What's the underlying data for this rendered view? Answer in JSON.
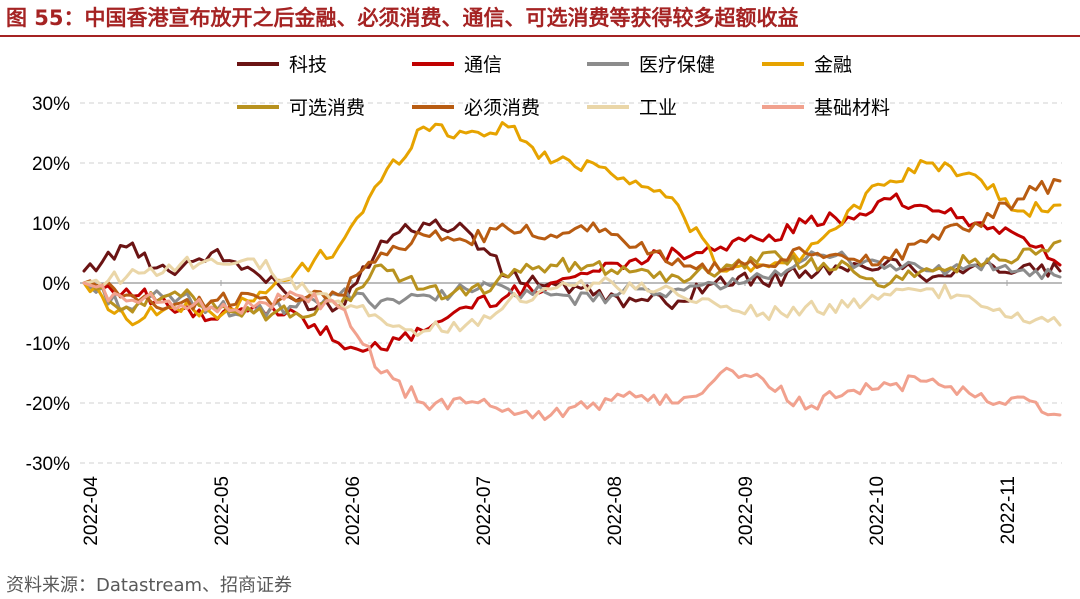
{
  "figure": {
    "title": "图 55：中国香港宣布放开之后金融、必须消费、通信、可选消费等获得较多超额收益",
    "source": "资料来源：Datastream、招商证券",
    "title_color": "#a52323"
  },
  "chart_data": {
    "type": "line",
    "title": "中国香港宣布放开之后金融、必须消费、通信、可选消费等获得较多超额收益",
    "xlabel": "",
    "ylabel": "",
    "ylim": [
      -30,
      30
    ],
    "yticks": [
      -30,
      -20,
      -10,
      0,
      10,
      20,
      30
    ],
    "ytick_labels": [
      "-30%",
      "-20%",
      "-10%",
      "0%",
      "10%",
      "20%",
      "30%"
    ],
    "x_tick_labels": [
      "2022-04",
      "2022-05",
      "2022-06",
      "2022-07",
      "2022-08",
      "2022-09",
      "2022-10",
      "2022-11"
    ],
    "grid": "horizontal dashed",
    "legend_position": "top",
    "x": [
      "04-01",
      "04-11",
      "04-21",
      "05-01",
      "05-11",
      "05-21",
      "06-01",
      "06-11",
      "06-21",
      "07-01",
      "07-11",
      "07-21",
      "08-01",
      "08-11",
      "08-21",
      "09-01",
      "09-11",
      "09-21",
      "10-01",
      "10-11",
      "10-21",
      "11-01",
      "11-11",
      "11-16"
    ],
    "series": [
      {
        "name": "科技",
        "color": "#6b1414",
        "values": [
          2,
          6,
          2,
          5,
          2,
          -3,
          -4,
          7,
          10,
          9,
          1,
          0,
          -2,
          -3,
          -3,
          1,
          0,
          2,
          2,
          4,
          1,
          3,
          2,
          2
        ]
      },
      {
        "name": "通信",
        "color": "#c00000",
        "values": [
          0,
          -1,
          -4,
          -6,
          -4,
          -5,
          -10,
          -11,
          -8,
          -4,
          -2,
          0,
          2,
          4,
          5,
          6,
          7,
          10,
          11,
          14,
          12,
          10,
          8,
          3
        ]
      },
      {
        "name": "医疗保健",
        "color": "#8c8c8c",
        "values": [
          0,
          -4,
          -2,
          -4,
          -5,
          -4,
          -2,
          -3,
          -2,
          -1,
          -1,
          -2,
          -3,
          -1,
          -1,
          -1,
          1,
          4,
          4,
          3,
          2,
          3,
          2,
          1
        ]
      },
      {
        "name": "金融",
        "color": "#e6a300",
        "values": [
          0,
          -6,
          -4,
          -5,
          -3,
          2,
          6,
          17,
          26,
          25,
          26,
          20,
          20,
          17,
          13,
          2,
          3,
          5,
          12,
          17,
          20,
          18,
          12,
          13
        ]
      },
      {
        "name": "可选消费",
        "color": "#b8921f",
        "values": [
          0,
          -4,
          -2,
          -3,
          -5,
          -5,
          -4,
          3,
          -1,
          -2,
          1,
          3,
          3,
          2,
          1,
          2,
          5,
          3,
          3,
          0,
          2,
          4,
          4,
          7
        ]
      },
      {
        "name": "必须消费",
        "color": "#b85c12",
        "values": [
          0,
          -2,
          -4,
          -3,
          -2,
          -3,
          -2,
          5,
          8,
          7,
          9,
          8,
          10,
          6,
          4,
          2,
          3,
          5,
          4,
          4,
          8,
          10,
          14,
          17
        ]
      },
      {
        "name": "工业",
        "color": "#ead6a8",
        "values": [
          0,
          1,
          3,
          4,
          4,
          -1,
          -3,
          -6,
          -8,
          -7,
          -3,
          -1,
          0,
          -1,
          -2,
          -4,
          -5,
          -4,
          -4,
          -2,
          -1,
          -3,
          -5,
          -7
        ]
      },
      {
        "name": "基础材料",
        "color": "#f1a18e",
        "values": [
          0,
          -3,
          -3,
          -4,
          -4,
          -2,
          -4,
          -15,
          -20,
          -20,
          -21,
          -22,
          -20,
          -19,
          -20,
          -15,
          -16,
          -21,
          -18,
          -17,
          -16,
          -19,
          -19,
          -22
        ]
      }
    ]
  }
}
